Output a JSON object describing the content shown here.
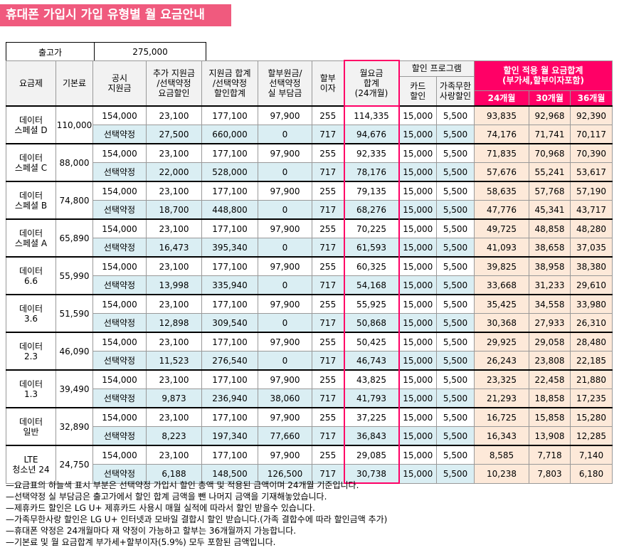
{
  "title": "휴대폰 가입시 가입 유형별 월 요금안내",
  "price": {
    "label": "출고가",
    "value": "275,000"
  },
  "headers": {
    "plan": "요금제",
    "base": "기본료",
    "subsidy": "공시\n지원금",
    "extra": "추가 지원금\n/선택약정\n요금할인",
    "total": "지원금 합계\n/선택약정\n할인합계",
    "install": "할부원금/\n선택약정\n실 부담금",
    "interest": "할부\n이자",
    "monthly": "월요금\n합계\n(24개월)",
    "program": "할인 프로그램",
    "card": "카드\n할인",
    "family": "가족무한\n사랑할인",
    "applied": "할인 적용 월 요금합계\n(부가세,할부이자포함)",
    "m24": "24개월",
    "m30": "30개월",
    "m36": "36개월"
  },
  "plans": [
    {
      "name": "데이터\n스페셜 D",
      "base": "110,000",
      "r1": [
        "154,000",
        "23,100",
        "177,100",
        "97,900",
        "255",
        "114,335",
        "15,000",
        "5,500",
        "93,835",
        "92,968",
        "92,390"
      ],
      "r2": [
        "선택약정",
        "27,500",
        "660,000",
        "0",
        "717",
        "94,676",
        "15,000",
        "5,500",
        "74,176",
        "71,741",
        "70,117"
      ]
    },
    {
      "name": "데이터\n스페셜 C",
      "base": "88,000",
      "r1": [
        "154,000",
        "23,100",
        "177,100",
        "97,900",
        "255",
        "92,335",
        "15,000",
        "5,500",
        "71,835",
        "70,968",
        "70,390"
      ],
      "r2": [
        "선택약정",
        "22,000",
        "528,000",
        "0",
        "717",
        "78,176",
        "15,000",
        "5,500",
        "57,676",
        "55,241",
        "53,617"
      ]
    },
    {
      "name": "데이터\n스페셜 B",
      "base": "74,800",
      "r1": [
        "154,000",
        "23,100",
        "177,100",
        "97,900",
        "255",
        "79,135",
        "15,000",
        "5,500",
        "58,635",
        "57,768",
        "57,190"
      ],
      "r2": [
        "선택약정",
        "18,700",
        "448,800",
        "0",
        "717",
        "68,276",
        "15,000",
        "5,500",
        "47,776",
        "45,341",
        "43,717"
      ]
    },
    {
      "name": "데이터\n스페셜 A",
      "base": "65,890",
      "r1": [
        "154,000",
        "23,100",
        "177,100",
        "97,900",
        "255",
        "70,225",
        "15,000",
        "5,500",
        "49,725",
        "48,858",
        "48,280"
      ],
      "r2": [
        "선택약정",
        "16,473",
        "395,340",
        "0",
        "717",
        "61,593",
        "15,000",
        "5,500",
        "41,093",
        "38,658",
        "37,035"
      ]
    },
    {
      "name": "데이터\n6.6",
      "base": "55,990",
      "r1": [
        "154,000",
        "23,100",
        "177,100",
        "97,900",
        "255",
        "60,325",
        "15,000",
        "5,500",
        "39,825",
        "38,958",
        "38,380"
      ],
      "r2": [
        "선택약정",
        "13,998",
        "335,940",
        "0",
        "717",
        "54,168",
        "15,000",
        "5,500",
        "33,668",
        "31,233",
        "29,610"
      ]
    },
    {
      "name": "데이터\n3.6",
      "base": "51,590",
      "r1": [
        "154,000",
        "23,100",
        "177,100",
        "97,900",
        "255",
        "55,925",
        "15,000",
        "5,500",
        "35,425",
        "34,558",
        "33,980"
      ],
      "r2": [
        "선택약정",
        "12,898",
        "309,540",
        "0",
        "717",
        "50,868",
        "15,000",
        "5,500",
        "30,368",
        "27,933",
        "26,310"
      ]
    },
    {
      "name": "데이터\n2.3",
      "base": "46,090",
      "r1": [
        "154,000",
        "23,100",
        "177,100",
        "97,900",
        "255",
        "50,425",
        "15,000",
        "5,500",
        "29,925",
        "29,058",
        "28,480"
      ],
      "r2": [
        "선택약정",
        "11,523",
        "276,540",
        "0",
        "717",
        "46,743",
        "15,000",
        "5,500",
        "26,243",
        "23,808",
        "22,185"
      ]
    },
    {
      "name": "데이터\n1.3",
      "base": "39,490",
      "r1": [
        "154,000",
        "23,100",
        "177,100",
        "97,900",
        "255",
        "43,825",
        "15,000",
        "5,500",
        "23,325",
        "22,458",
        "21,880"
      ],
      "r2": [
        "선택약정",
        "9,873",
        "236,940",
        "38,060",
        "717",
        "41,793",
        "15,000",
        "5,500",
        "21,293",
        "18,858",
        "17,235"
      ]
    },
    {
      "name": "데이터\n일반",
      "base": "32,890",
      "r1": [
        "154,000",
        "23,100",
        "177,100",
        "97,900",
        "255",
        "37,225",
        "15,000",
        "5,500",
        "16,725",
        "15,858",
        "15,280"
      ],
      "r2": [
        "선택약정",
        "8,223",
        "197,340",
        "77,660",
        "717",
        "36,843",
        "15,000",
        "5,500",
        "16,343",
        "13,908",
        "12,285"
      ]
    },
    {
      "name": "LTE\n청소년 24",
      "base": "24,750",
      "r1": [
        "154,000",
        "23,100",
        "177,100",
        "97,900",
        "255",
        "29,085",
        "15,000",
        "5,500",
        "8,585",
        "7,718",
        "7,140"
      ],
      "r2": [
        "선택약정",
        "6,188",
        "148,500",
        "126,500",
        "717",
        "30,738",
        "15,000",
        "5,500",
        "10,238",
        "7,803",
        "6,180"
      ]
    }
  ],
  "notes": [
    "—요금표의 하늘색 표시 부분은 선택약정 가입시 할인 총액 및 적용된 금액이며 24개월 기준입니다.",
    "—선택약정 실 부담금은 출고가에서 할인 합계 금액을 뺀 나머지 금액을 기재해놓았습니다.",
    "—제휴카드 할인은 LG U+ 제휴카드 사용시 매월 실적에 따라서 할인 받을수 있습니다.",
    "—가족무한사랑 할인은 LG U+ 인터넷과 모바일 결합시 할인 받습니다.(가족 결합수에 따라 할인금액 추가)",
    "—휴대폰 약정은 24개월마다 재 약정이 가능하고 할부는 36개월까지 가능합니다.",
    "—기본료 및 월 요금합계 부가세+할부이자(5.9%) 모두 포함된 금액입니다."
  ]
}
